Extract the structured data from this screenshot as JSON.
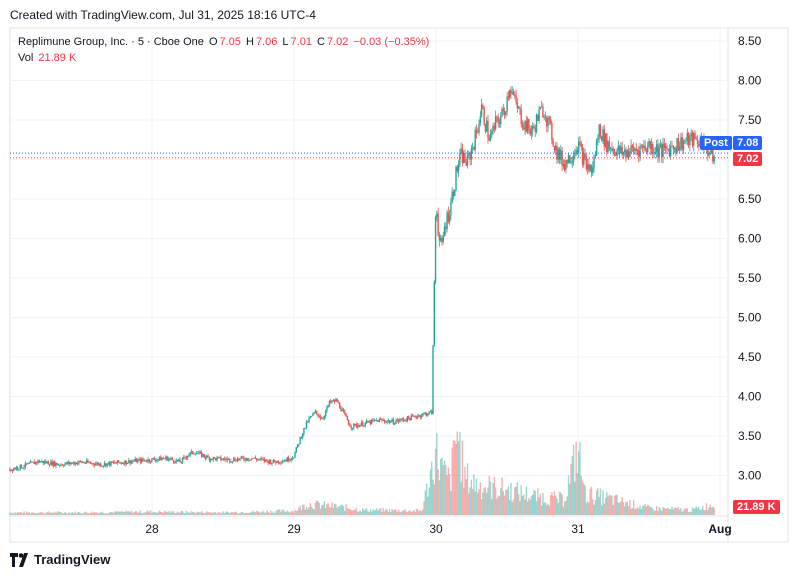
{
  "caption": "Created with TradingView.com, Jul 31, 2025 18:16 UTC-4",
  "legend": {
    "symbol": "Replimune Group, Inc. · 5 · Cboe One",
    "o_label": "O",
    "o": "7.05",
    "h_label": "H",
    "h": "7.06",
    "l_label": "L",
    "l": "7.01",
    "c_label": "C",
    "c": "7.02",
    "change": "−0.03 (−0.35%)",
    "vol_label": "Vol",
    "vol": "21.89 K"
  },
  "badges": {
    "post_label": "Post",
    "post_price": "7.08",
    "last_price": "7.02",
    "volume": "21.89 K"
  },
  "footer": {
    "brand": "TradingView"
  },
  "colors": {
    "up": "#26a69a",
    "down": "#ef5350",
    "post": "#2962ff",
    "last": "#f23645",
    "grid": "#f0f3fa"
  },
  "chart_data": {
    "type": "candlestick",
    "ylim": [
      2.65,
      8.65
    ],
    "y_ticks": [
      "8.50",
      "8.00",
      "7.50",
      "7.00",
      "6.50",
      "6.00",
      "5.50",
      "5.00",
      "4.50",
      "4.00",
      "3.50",
      "3.00"
    ],
    "x_ticks": [
      {
        "label": "28",
        "x": 1
      },
      {
        "label": "29",
        "x": 2
      },
      {
        "label": "30",
        "x": 3
      },
      {
        "label": "31",
        "x": 4
      },
      {
        "label": "Aug",
        "x": 5
      }
    ],
    "post_price": 7.08,
    "last_price": 7.02,
    "price_path": [
      [
        0.0,
        3.08
      ],
      [
        0.1,
        3.12
      ],
      [
        0.2,
        3.18
      ],
      [
        0.35,
        3.14
      ],
      [
        0.5,
        3.17
      ],
      [
        0.65,
        3.14
      ],
      [
        0.85,
        3.18
      ],
      [
        1.0,
        3.2
      ],
      [
        1.1,
        3.22
      ],
      [
        1.2,
        3.17
      ],
      [
        1.25,
        3.26
      ],
      [
        1.3,
        3.3
      ],
      [
        1.4,
        3.22
      ],
      [
        1.55,
        3.2
      ],
      [
        1.7,
        3.22
      ],
      [
        1.85,
        3.17
      ],
      [
        1.95,
        3.2
      ],
      [
        2.0,
        3.25
      ],
      [
        2.05,
        3.5
      ],
      [
        2.1,
        3.7
      ],
      [
        2.15,
        3.8
      ],
      [
        2.2,
        3.72
      ],
      [
        2.25,
        3.92
      ],
      [
        2.3,
        3.95
      ],
      [
        2.35,
        3.78
      ],
      [
        2.4,
        3.62
      ],
      [
        2.5,
        3.66
      ],
      [
        2.6,
        3.7
      ],
      [
        2.7,
        3.68
      ],
      [
        2.8,
        3.72
      ],
      [
        2.9,
        3.77
      ],
      [
        2.97,
        3.8
      ],
      [
        3.0,
        6.55
      ],
      [
        3.02,
        6.0
      ],
      [
        3.04,
        5.85
      ],
      [
        3.06,
        6.15
      ],
      [
        3.1,
        6.4
      ],
      [
        3.15,
        6.9
      ],
      [
        3.18,
        7.05
      ],
      [
        3.22,
        6.95
      ],
      [
        3.28,
        7.3
      ],
      [
        3.32,
        7.65
      ],
      [
        3.38,
        7.25
      ],
      [
        3.42,
        7.45
      ],
      [
        3.48,
        7.6
      ],
      [
        3.52,
        7.95
      ],
      [
        3.56,
        7.7
      ],
      [
        3.62,
        7.45
      ],
      [
        3.68,
        7.35
      ],
      [
        3.72,
        7.55
      ],
      [
        3.76,
        7.65
      ],
      [
        3.8,
        7.4
      ],
      [
        3.85,
        7.1
      ],
      [
        3.9,
        6.95
      ],
      [
        3.95,
        7.05
      ],
      [
        4.0,
        7.2
      ],
      [
        4.05,
        6.95
      ],
      [
        4.1,
        6.85
      ],
      [
        4.15,
        7.4
      ],
      [
        4.2,
        7.2
      ],
      [
        4.3,
        7.08
      ],
      [
        4.4,
        7.12
      ],
      [
        4.5,
        7.18
      ],
      [
        4.6,
        7.1
      ],
      [
        4.7,
        7.2
      ],
      [
        4.8,
        7.25
      ],
      [
        4.88,
        7.22
      ],
      [
        4.93,
        7.08
      ],
      [
        4.96,
        7.02
      ]
    ],
    "volume_path": [
      [
        0.0,
        0.03
      ],
      [
        0.5,
        0.03
      ],
      [
        1.0,
        0.04
      ],
      [
        1.5,
        0.03
      ],
      [
        2.0,
        0.05
      ],
      [
        2.1,
        0.13
      ],
      [
        2.3,
        0.1
      ],
      [
        2.5,
        0.06
      ],
      [
        2.9,
        0.05
      ],
      [
        3.0,
        0.75
      ],
      [
        3.05,
        0.5
      ],
      [
        3.1,
        0.4
      ],
      [
        3.15,
        1.0
      ],
      [
        3.2,
        0.45
      ],
      [
        3.3,
        0.35
      ],
      [
        3.5,
        0.3
      ],
      [
        3.7,
        0.22
      ],
      [
        3.9,
        0.18
      ],
      [
        4.0,
        0.78
      ],
      [
        4.05,
        0.25
      ],
      [
        4.2,
        0.2
      ],
      [
        4.5,
        0.08
      ],
      [
        4.8,
        0.06
      ],
      [
        4.95,
        0.12
      ]
    ]
  }
}
